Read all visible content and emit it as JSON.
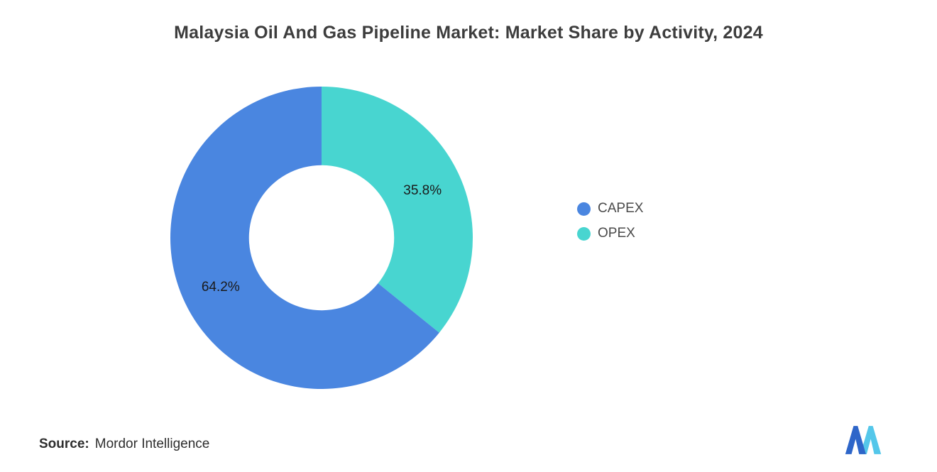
{
  "title": "Malaysia Oil And Gas Pipeline Market: Market Share by Activity, 2024",
  "source": {
    "label": "Source:",
    "value": "Mordor Intelligence"
  },
  "logo": {
    "name": "mordor-intelligence-logo"
  },
  "chart_data": {
    "type": "pie",
    "subtype": "donut",
    "title": "Malaysia Oil And Gas Pipeline Market: Market Share by Activity, 2024",
    "categories": [
      "CAPEX",
      "OPEX"
    ],
    "values": [
      64.2,
      35.8
    ],
    "unit": "%",
    "labels": [
      "64.2%",
      "35.8%"
    ],
    "colors": [
      "#4a86e0",
      "#48d5d0"
    ],
    "draw_order": [
      "OPEX",
      "CAPEX"
    ],
    "start_angle_deg": 0,
    "direction": "clockwise",
    "inner_radius_ratio": 0.48,
    "legend_position": "right",
    "legend": [
      {
        "label": "CAPEX",
        "color": "#4a86e0"
      },
      {
        "label": "OPEX",
        "color": "#48d5d0"
      }
    ]
  }
}
